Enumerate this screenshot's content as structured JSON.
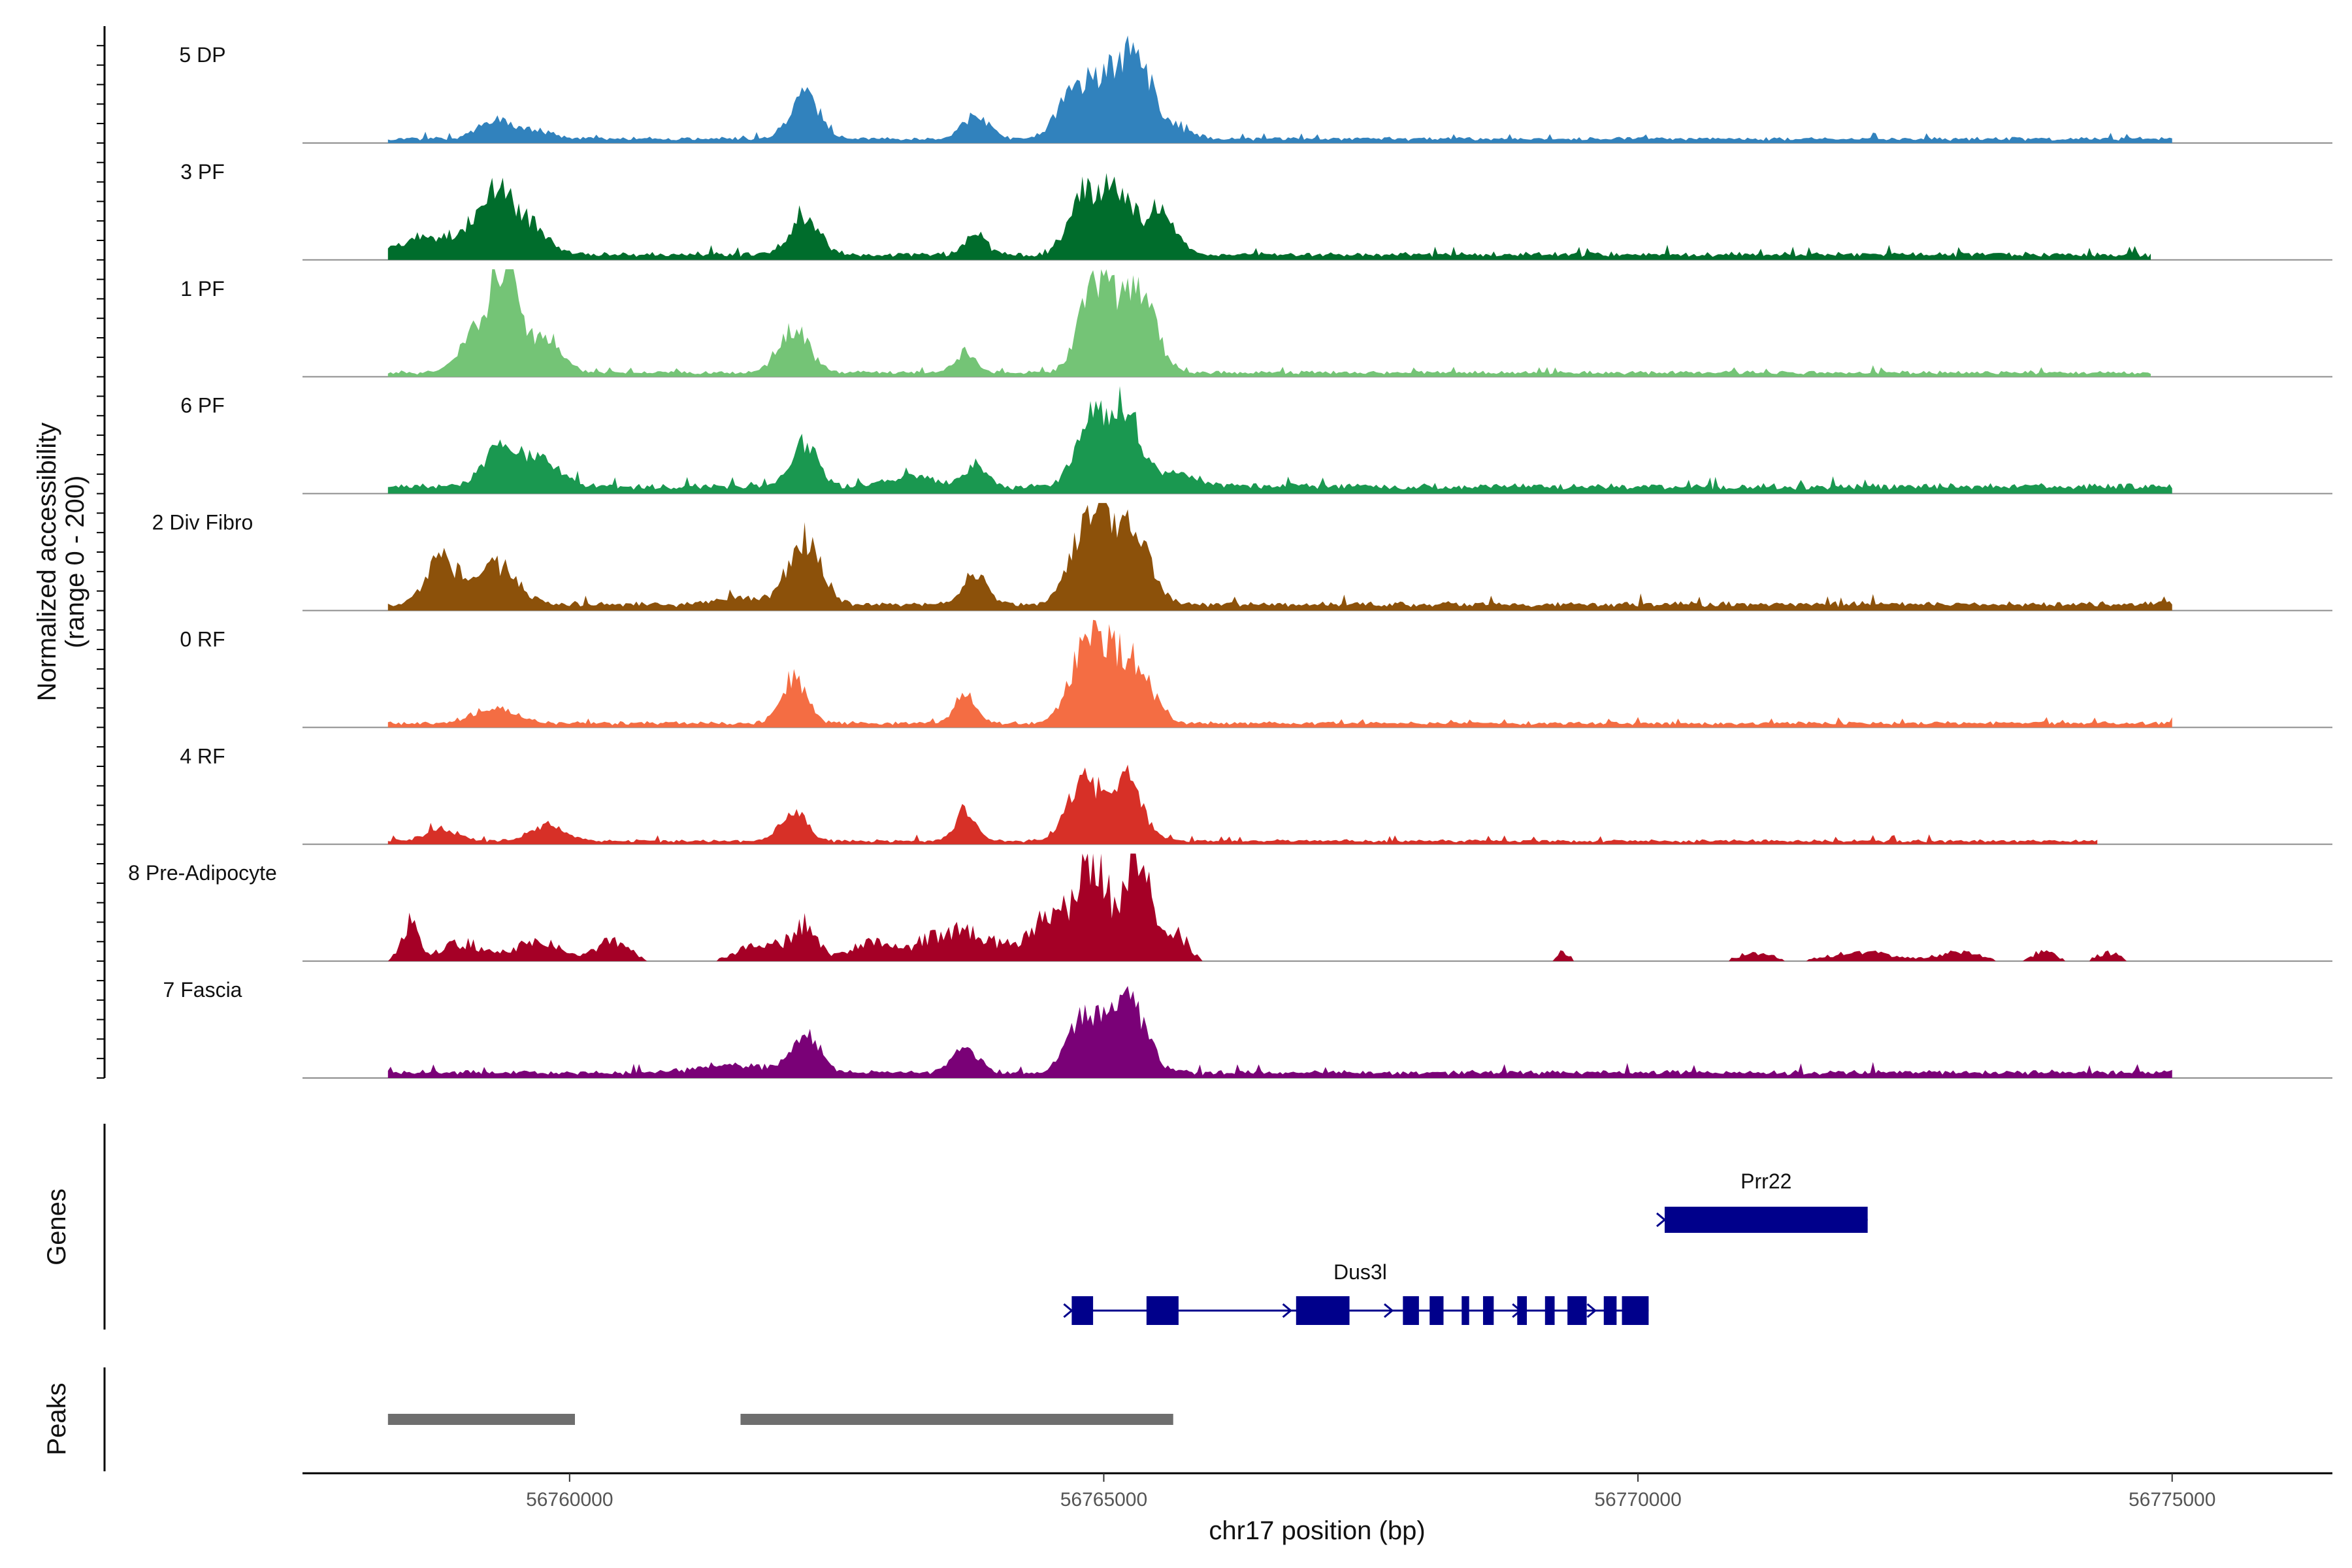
{
  "chart_data": {
    "type": "area",
    "title": "",
    "xlabel": "chr17 position (bp)",
    "ylabel_line1": "Normalized accessibility",
    "ylabel_line2": "(range 0 - 200)",
    "xlim": [
      56757500,
      56776500
    ],
    "x_ticks": [
      56760000,
      56765000,
      56770000,
      56775000
    ],
    "x_tick_labels": [
      "56760000",
      "56765000",
      "56770000",
      "56775000"
    ],
    "ylim": [
      0,
      200
    ],
    "tracks": [
      {
        "name": "5 DP",
        "color": "#3182BD",
        "data_start": 56758300,
        "data_end": 56775000,
        "base": 4,
        "noise": 2,
        "peaks": [
          [
            56759300,
            25,
            150
          ],
          [
            56759700,
            10,
            150
          ],
          [
            56762200,
            60,
            130
          ],
          [
            56763800,
            30,
            120
          ],
          [
            56764700,
            45,
            150
          ],
          [
            56765000,
            65,
            180
          ],
          [
            56765300,
            90,
            160
          ],
          [
            56765700,
            12,
            150
          ]
        ]
      },
      {
        "name": "3 PF",
        "color": "#006D2C",
        "data_start": 56758300,
        "data_end": 56774800,
        "base": 5,
        "noise": 3,
        "peaks": [
          [
            56758700,
            20,
            300
          ],
          [
            56759300,
            65,
            200
          ],
          [
            56759600,
            25,
            200
          ],
          [
            56762200,
            45,
            140
          ],
          [
            56763800,
            25,
            100
          ],
          [
            56764800,
            70,
            140
          ],
          [
            56765100,
            90,
            130
          ],
          [
            56765500,
            55,
            150
          ]
        ]
      },
      {
        "name": "1 PF",
        "color": "#74C476",
        "data_start": 56758300,
        "data_end": 56774800,
        "base": 4,
        "noise": 2,
        "peaks": [
          [
            56759100,
            40,
            150
          ],
          [
            56759400,
            130,
            140
          ],
          [
            56759800,
            40,
            140
          ],
          [
            56762100,
            55,
            140
          ],
          [
            56763700,
            25,
            100
          ],
          [
            56764900,
            85,
            140
          ],
          [
            56765200,
            75,
            200
          ],
          [
            56765400,
            40,
            120
          ]
        ]
      },
      {
        "name": "6 PF",
        "color": "#1A9850",
        "data_start": 56758300,
        "data_end": 56775000,
        "base": 7,
        "noise": 3,
        "peaks": [
          [
            56759400,
            55,
            180
          ],
          [
            56759800,
            25,
            150
          ],
          [
            56762200,
            55,
            130
          ],
          [
            56763200,
            15,
            200
          ],
          [
            56763800,
            25,
            100
          ],
          [
            56764900,
            75,
            160
          ],
          [
            56765200,
            85,
            150
          ],
          [
            56765700,
            15,
            200
          ]
        ]
      },
      {
        "name": "2 Div Fibro",
        "color": "#8C510A",
        "data_start": 56758300,
        "data_end": 56775000,
        "base": 6,
        "noise": 3,
        "peaks": [
          [
            56758800,
            55,
            140
          ],
          [
            56759300,
            50,
            200
          ],
          [
            56761600,
            8,
            200
          ],
          [
            56762200,
            80,
            150
          ],
          [
            56763800,
            40,
            100
          ],
          [
            56764800,
            70,
            150
          ],
          [
            56765000,
            90,
            140
          ],
          [
            56765300,
            80,
            150
          ]
        ]
      },
      {
        "name": "0 RF",
        "color": "#F46D43",
        "data_start": 56758300,
        "data_end": 56775000,
        "base": 4,
        "noise": 2,
        "peaks": [
          [
            56759300,
            18,
            200
          ],
          [
            56762100,
            55,
            120
          ],
          [
            56763700,
            35,
            100
          ],
          [
            56764800,
            70,
            140
          ],
          [
            56765000,
            75,
            140
          ],
          [
            56765300,
            70,
            150
          ]
        ]
      },
      {
        "name": "4 RF",
        "color": "#D73027",
        "data_start": 56758300,
        "data_end": 56774300,
        "base": 3,
        "noise": 2,
        "peaks": [
          [
            56758800,
            15,
            150
          ],
          [
            56759800,
            20,
            150
          ],
          [
            56762100,
            40,
            120
          ],
          [
            56763700,
            35,
            100
          ],
          [
            56764800,
            80,
            140
          ],
          [
            56765200,
            80,
            150
          ]
        ]
      },
      {
        "name": "8 Pre-Adipocyte",
        "color": "#A50026",
        "data_start": 56758300,
        "data_end": 56775000,
        "base": 0,
        "noise": 30,
        "peaks": [
          [
            56758500,
            50,
            80
          ],
          [
            56759000,
            25,
            200
          ],
          [
            56759700,
            30,
            200
          ],
          [
            56760400,
            30,
            150
          ],
          [
            56761800,
            25,
            200
          ],
          [
            56762200,
            45,
            120
          ],
          [
            56762800,
            25,
            200
          ],
          [
            56763400,
            30,
            200
          ],
          [
            56763800,
            35,
            200
          ],
          [
            56764400,
            30,
            200
          ],
          [
            56764600,
            45,
            200
          ],
          [
            56764900,
            140,
            120
          ],
          [
            56765300,
            160,
            130
          ],
          [
            56765700,
            35,
            100
          ],
          [
            56769300,
            12,
            60
          ],
          [
            56771100,
            12,
            150
          ],
          [
            56772100,
            12,
            300
          ],
          [
            56773000,
            12,
            200
          ],
          [
            56773800,
            14,
            100
          ],
          [
            56774400,
            12,
            100
          ]
        ]
      },
      {
        "name": "7 Fascia",
        "color": "#7A0177",
        "data_start": 56758300,
        "data_end": 56775000,
        "base": 5,
        "noise": 3,
        "peaks": [
          [
            56761500,
            10,
            300
          ],
          [
            56762200,
            45,
            140
          ],
          [
            56763700,
            30,
            120
          ],
          [
            56764800,
            65,
            140
          ],
          [
            56765100,
            70,
            120
          ],
          [
            56765300,
            60,
            140
          ]
        ]
      }
    ],
    "genes": {
      "title": "Genes",
      "color": "#00008B",
      "items": [
        {
          "name": "Prr22",
          "start": 56770250,
          "end": 56772150,
          "strand": "+",
          "exons": [
            [
              56770250,
              56772150
            ]
          ]
        },
        {
          "name": "Dus3l",
          "start": 56764700,
          "end": 56770100,
          "strand": "+",
          "exons": [
            [
              56764700,
              56764900
            ],
            [
              56765400,
              56765700
            ],
            [
              56766800,
              56767300
            ],
            [
              56767800,
              56767950
            ],
            [
              56768050,
              56768180
            ],
            [
              56768350,
              56768420
            ],
            [
              56768550,
              56768650
            ],
            [
              56768870,
              56768960
            ],
            [
              56769130,
              56769220
            ],
            [
              56769340,
              56769520
            ],
            [
              56769680,
              56769800
            ],
            [
              56769850,
              56770100
            ]
          ]
        }
      ]
    },
    "peaks_track": {
      "title": "Peaks",
      "color": "#6E6E6E",
      "regions": [
        [
          56758300,
          56760050
        ],
        [
          56761600,
          56765650
        ]
      ]
    }
  }
}
